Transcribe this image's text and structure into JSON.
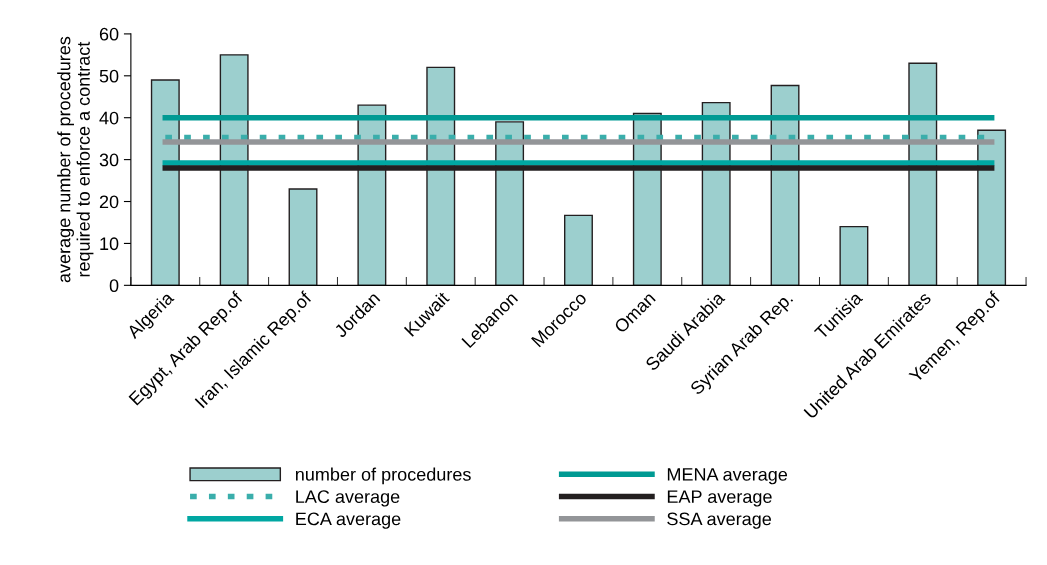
{
  "chart_data": {
    "type": "bar",
    "ylabel": "average number of procedures\nrequired to enforce a contract",
    "categories": [
      "Algeria",
      "Egypt, Arab Rep.of",
      "Iran, Islamic Rep.of",
      "Jordan",
      "Kuwait",
      "Lebanon",
      "Morocco",
      "Oman",
      "Saudi Arabia",
      "Syrian Arab Rep.",
      "Tunisia",
      "United Arab Emirates",
      "Yemen, Rep.of"
    ],
    "series": [
      {
        "name": "number of procedures",
        "color": "#9ccfce",
        "values": [
          49,
          55,
          23,
          43,
          52,
          39,
          16.7,
          41,
          43.6,
          47.7,
          14,
          53,
          37
        ]
      },
      {
        "name": "LAC average",
        "type": "line",
        "line_style": "dashed",
        "color": "#3aaeab",
        "values": [
          35.3,
          35.3,
          35.3,
          35.3,
          35.3,
          35.3,
          35.3,
          35.3,
          35.3,
          35.3,
          35.3,
          35.3,
          35.3
        ]
      },
      {
        "name": "ECA average",
        "type": "line",
        "line_style": "solid",
        "color": "#00a7a2",
        "values": [
          29.2,
          29.2,
          29.2,
          29.2,
          29.2,
          29.2,
          29.2,
          29.2,
          29.2,
          29.2,
          29.2,
          29.2,
          29.2
        ]
      },
      {
        "name": "MENA average",
        "type": "line",
        "line_style": "solid",
        "color": "#009a93",
        "values": [
          40,
          40,
          40,
          40,
          40,
          40,
          40,
          40,
          40,
          40,
          40,
          40,
          40
        ]
      },
      {
        "name": "EAP average",
        "type": "line",
        "line_style": "solid",
        "color": "#231f20",
        "values": [
          28,
          28,
          28,
          28,
          28,
          28,
          28,
          28,
          28,
          28,
          28,
          28,
          28
        ]
      },
      {
        "name": "SSA average",
        "type": "line",
        "line_style": "solid",
        "color": "#939598",
        "values": [
          34.2,
          34.2,
          34.2,
          34.2,
          34.2,
          34.2,
          34.2,
          34.2,
          34.2,
          34.2,
          34.2,
          34.2,
          34.2
        ]
      }
    ],
    "ylim": [
      0,
      60
    ],
    "yticks": [
      0,
      10,
      20,
      30,
      40,
      50,
      60
    ],
    "grid": false,
    "legend": "bottom",
    "marker": "none"
  }
}
